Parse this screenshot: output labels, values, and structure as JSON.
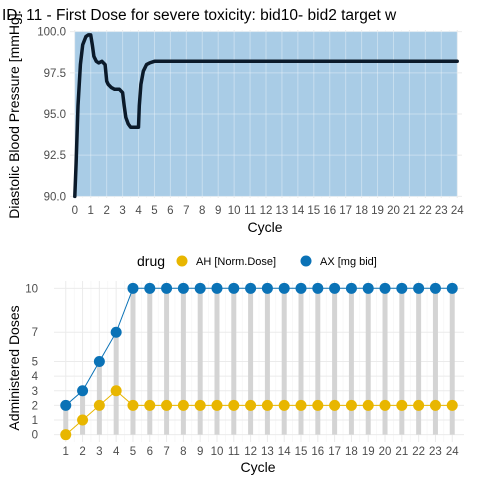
{
  "chart_data": [
    {
      "type": "line",
      "title": "ID: 11 -  First Dose for severe toxicity: bid10- bid2 target w",
      "xlabel": "Cycle",
      "ylabel": "Diastolic Blood Pressure [mmHg]",
      "xlim": [
        -0.3,
        24.3
      ],
      "ylim": [
        89.9,
        100.1
      ],
      "xticks": [
        "0",
        "1",
        "2",
        "3",
        "4",
        "5",
        "6",
        "7",
        "8",
        "9",
        "10",
        "11",
        "12",
        "13",
        "14",
        "15",
        "16",
        "17",
        "18",
        "19",
        "20",
        "21",
        "22",
        "23",
        "24"
      ],
      "yticks": [
        "90.0",
        "92.5",
        "95.0",
        "97.5",
        "100.0"
      ],
      "target_band": [
        90.0,
        100.0
      ],
      "band_color": "#a9cce6",
      "line_color": "#0b1a2a",
      "series": [
        {
          "x": [
            0,
            0.08,
            0.2,
            0.35,
            0.5,
            0.7,
            0.85,
            1.0,
            1.1,
            1.2,
            1.35,
            1.5,
            1.7,
            1.9,
            2.0,
            2.1,
            2.3,
            2.5,
            2.8,
            3.0,
            3.1,
            3.2,
            3.35,
            3.5,
            3.7,
            3.9,
            4.0,
            4.05,
            4.15,
            4.3,
            4.5,
            4.7,
            5.0,
            5.5,
            6,
            8,
            12,
            16,
            20,
            24
          ],
          "y": [
            90.0,
            92.0,
            95.5,
            98.0,
            99.2,
            99.7,
            99.8,
            99.8,
            99.2,
            98.5,
            98.2,
            98.1,
            98.2,
            98.0,
            97.0,
            96.8,
            96.6,
            96.5,
            96.5,
            96.3,
            95.5,
            94.8,
            94.4,
            94.2,
            94.2,
            94.2,
            94.2,
            95.5,
            96.8,
            97.6,
            98.0,
            98.1,
            98.2,
            98.2,
            98.2,
            98.2,
            98.2,
            98.2,
            98.2,
            98.2
          ]
        }
      ],
      "grid": true
    },
    {
      "type": "lollipop",
      "xlabel": "Cycle",
      "ylabel": "Administered Doses",
      "xlim": [
        0.3,
        24.7
      ],
      "ylim": [
        -0.5,
        10.5
      ],
      "xticks": [
        "1",
        "2",
        "3",
        "4",
        "5",
        "6",
        "7",
        "8",
        "9",
        "10",
        "11",
        "12",
        "13",
        "14",
        "15",
        "16",
        "17",
        "18",
        "19",
        "20",
        "21",
        "22",
        "23",
        "24"
      ],
      "yticks": [
        "0",
        "1",
        "2",
        "3",
        "4",
        "5",
        "7",
        "10"
      ],
      "legend_title": "drug",
      "legend_position": "top",
      "categories": [
        1,
        2,
        3,
        4,
        5,
        6,
        7,
        8,
        9,
        10,
        11,
        12,
        13,
        14,
        15,
        16,
        17,
        18,
        19,
        20,
        21,
        22,
        23,
        24
      ],
      "series": [
        {
          "name": "AH [Norm.Dose]",
          "color": "#e8b600",
          "values": [
            0,
            1,
            2,
            3,
            2,
            2,
            2,
            2,
            2,
            2,
            2,
            2,
            2,
            2,
            2,
            2,
            2,
            2,
            2,
            2,
            2,
            2,
            2,
            2
          ]
        },
        {
          "name": "AX [mg bid]",
          "color": "#0a72b6",
          "values": [
            2,
            3,
            5,
            7,
            10,
            10,
            10,
            10,
            10,
            10,
            10,
            10,
            10,
            10,
            10,
            10,
            10,
            10,
            10,
            10,
            10,
            10,
            10,
            10
          ]
        }
      ],
      "stem_color": "#d4d4d4",
      "grid": true
    }
  ]
}
